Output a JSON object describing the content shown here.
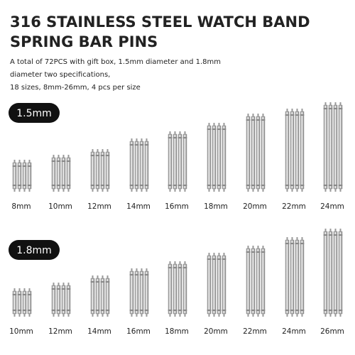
{
  "header": {
    "title": [
      "316 STAINLESS STEEL WATCH BAND",
      "SPRING BAR PINS"
    ],
    "description": [
      "A total of 72PCS with gift box, 1.5mm diameter and 1.8mm",
      "diameter two specifications,",
      "18 sizes, 8mm-26mm, 4 pcs per size"
    ]
  },
  "groups": [
    {
      "label": "1.5mm",
      "sizes": [
        "8mm",
        "10mm",
        "12mm",
        "14mm",
        "16mm",
        "18mm",
        "20mm",
        "22mm",
        "24mm"
      ]
    },
    {
      "label": "1.8mm",
      "sizes": [
        "10mm",
        "12mm",
        "14mm",
        "16mm",
        "18mm",
        "20mm",
        "22mm",
        "24mm",
        "26mm"
      ]
    }
  ]
}
